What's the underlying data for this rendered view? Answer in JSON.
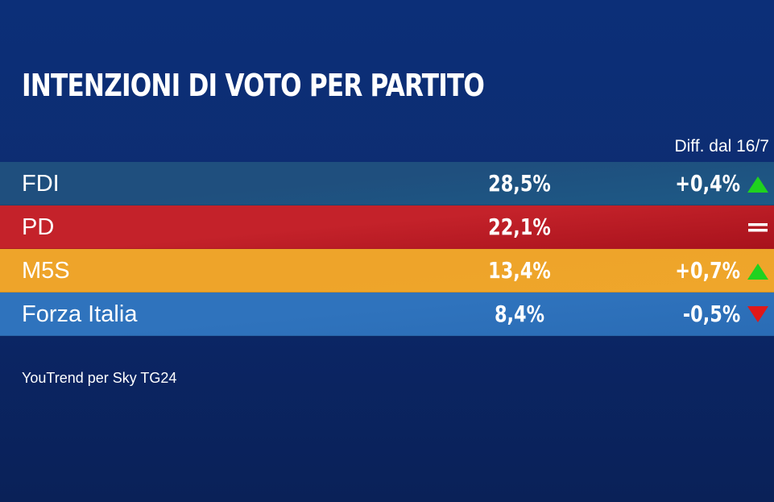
{
  "chart_data": {
    "type": "table",
    "title": "INTENZIONI DI VOTO PER PARTITO",
    "diff_header": "Diff. dal 16/7",
    "rows": [
      {
        "party": "FDI",
        "value": "28,5%",
        "diff": "+0,4%",
        "trend": "up",
        "color": "#1f4f7e",
        "color_end": "#1d5a86"
      },
      {
        "party": "PD",
        "value": "22,1%",
        "diff": "",
        "trend": "equal",
        "color": "#c4222a",
        "color_end": "#a8121c"
      },
      {
        "party": "M5S",
        "value": "13,4%",
        "diff": "+0,7%",
        "trend": "up",
        "color": "#eea42a",
        "color_end": "#efa62b"
      },
      {
        "party": "Forza Italia",
        "value": "8,4%",
        "diff": "-0,5%",
        "trend": "down",
        "color": "#2f73bd",
        "color_end": "#2a6cb5"
      }
    ],
    "source": "YouTrend per Sky TG24"
  },
  "colors": {
    "background": "#0d2d72",
    "up": "#1fd21f",
    "down": "#e01818",
    "equal": "#ffffff"
  },
  "icons": {
    "up": "triangle-up-icon",
    "down": "triangle-down-icon",
    "equal": "equals-icon"
  }
}
